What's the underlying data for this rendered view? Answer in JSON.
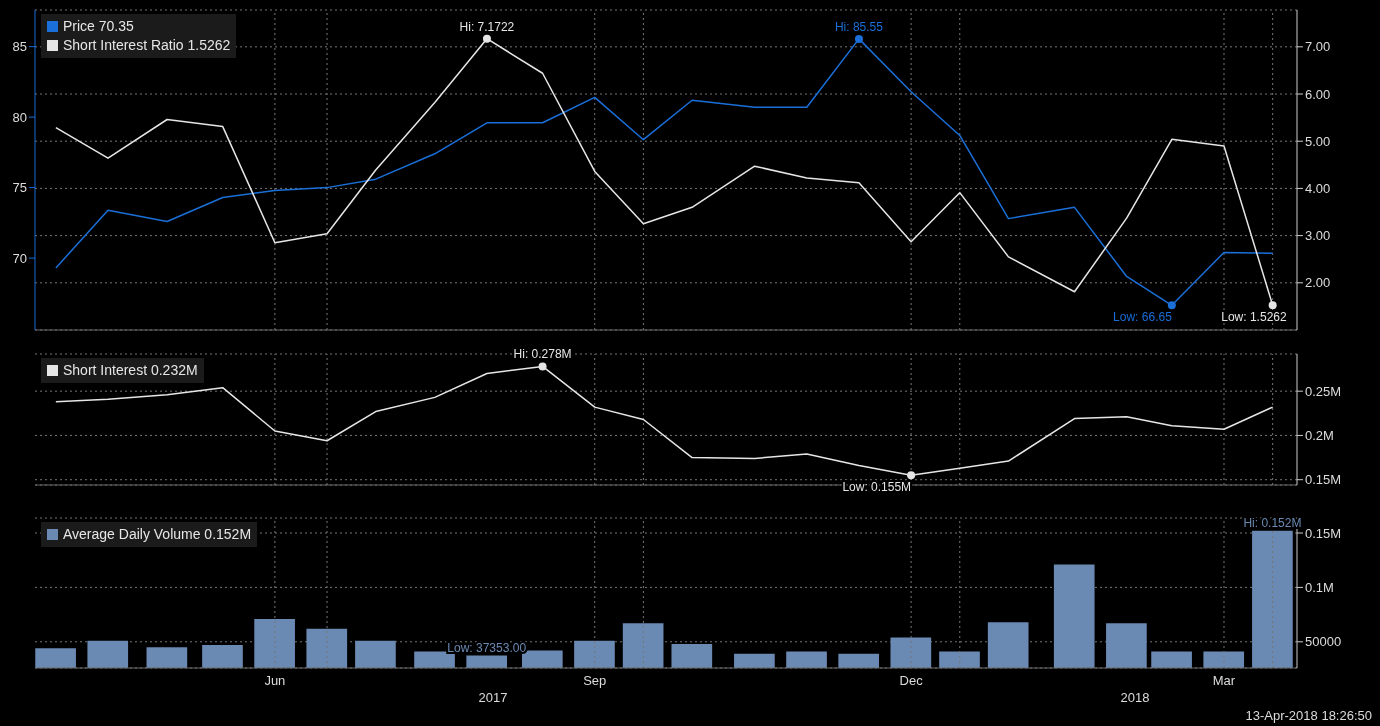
{
  "chart_data": [
    {
      "type": "line",
      "x": [
        "2017-04-13",
        "2017-04-28",
        "2017-05-15",
        "2017-05-31",
        "2017-06-15",
        "2017-06-30",
        "2017-07-14",
        "2017-07-31",
        "2017-08-15",
        "2017-08-31",
        "2017-09-15",
        "2017-09-29",
        "2017-10-13",
        "2017-10-31",
        "2017-11-15",
        "2017-11-30",
        "2017-12-15",
        "2017-12-29",
        "2018-01-12",
        "2018-01-31",
        "2018-02-15",
        "2018-02-28",
        "2018-03-15",
        "2018-03-29"
      ],
      "xlim": [
        "2017-04-07",
        "2018-04-05"
      ],
      "xticks": [
        {
          "value": "2017-06-15",
          "label": null
        },
        {
          "value": "2017-06-30",
          "label": null
        },
        {
          "value": "2017-09-15",
          "label": null
        },
        {
          "value": "2017-09-29",
          "label": null
        },
        {
          "value": "2017-12-15",
          "label": null
        },
        {
          "value": "2017-12-29",
          "label": null
        },
        {
          "value": "2018-03-15",
          "label": null
        },
        {
          "value": "2018-03-29",
          "label": null
        }
      ],
      "tick_labels": "y",
      "grid": true,
      "legend": "top left",
      "ylim": [
        64.9,
        87.6
      ],
      "yticks": [
        70,
        75,
        80,
        85
      ],
      "y2lim": [
        1.0,
        7.78
      ],
      "y2ticks": [
        {
          "value": 2,
          "label": "2.00"
        },
        {
          "value": 3,
          "label": "3.00"
        },
        {
          "value": 4,
          "label": "4.00"
        },
        {
          "value": 5,
          "label": "5.00"
        },
        {
          "value": 6,
          "label": "6.00"
        },
        {
          "value": 7,
          "label": "7.00"
        }
      ],
      "series": [
        {
          "name": "Price 70.35",
          "color": "#1a6fd8",
          "values": [
            69.3,
            73.4,
            72.6,
            74.3,
            74.8,
            75.0,
            75.6,
            77.4,
            79.6,
            79.6,
            81.4,
            78.4,
            81.2,
            80.7,
            80.7,
            85.55,
            81.8,
            78.7,
            72.8,
            73.6,
            68.7,
            66.65,
            70.4,
            70.35
          ],
          "value_labels": [
            null,
            null,
            null,
            null,
            null,
            null,
            null,
            null,
            null,
            null,
            null,
            null,
            null,
            null,
            null,
            "Hi: 85.55",
            null,
            null,
            null,
            null,
            null,
            "Low: 66.65",
            null,
            null
          ]
        },
        {
          "name": "Short Interest Ratio 1.5262",
          "color": "#e6e6e6",
          "axis": "y2",
          "values": [
            5.29,
            4.64,
            5.46,
            5.31,
            2.85,
            3.04,
            4.39,
            5.82,
            7.1722,
            6.44,
            4.36,
            3.25,
            3.6,
            4.47,
            4.22,
            4.12,
            2.87,
            3.91,
            2.55,
            1.81,
            3.37,
            5.04,
            4.9,
            1.5262
          ],
          "value_labels": [
            null,
            null,
            null,
            null,
            null,
            null,
            null,
            null,
            "Hi: 7.1722",
            null,
            null,
            null,
            null,
            null,
            null,
            null,
            null,
            null,
            null,
            null,
            null,
            null,
            null,
            "Low: 1.5262"
          ]
        }
      ]
    },
    {
      "type": "line",
      "x": [
        "2017-04-13",
        "2017-04-28",
        "2017-05-15",
        "2017-05-31",
        "2017-06-15",
        "2017-06-30",
        "2017-07-14",
        "2017-07-31",
        "2017-08-15",
        "2017-08-31",
        "2017-09-15",
        "2017-09-29",
        "2017-10-13",
        "2017-10-31",
        "2017-11-15",
        "2017-11-30",
        "2017-12-15",
        "2017-12-29",
        "2018-01-12",
        "2018-01-31",
        "2018-02-15",
        "2018-02-28",
        "2018-03-15",
        "2018-03-29"
      ],
      "xlim": [
        "2017-04-07",
        "2018-04-05"
      ],
      "xticks": [
        {
          "value": "2017-06-15",
          "label": null
        },
        {
          "value": "2017-06-30",
          "label": null
        },
        {
          "value": "2017-09-15",
          "label": null
        },
        {
          "value": "2017-09-29",
          "label": null
        },
        {
          "value": "2017-12-15",
          "label": null
        },
        {
          "value": "2017-12-29",
          "label": null
        },
        {
          "value": "2018-03-15",
          "label": null
        },
        {
          "value": "2018-03-29",
          "label": null
        }
      ],
      "tick_labels": "y",
      "grid": true,
      "legend": "top left",
      "ylim": [
        0.144,
        0.292
      ],
      "yticks": [
        {
          "value": 0.15,
          "label": "0.15M"
        },
        {
          "value": 0.2,
          "label": "0.2M"
        },
        {
          "value": 0.25,
          "label": "0.25M"
        }
      ],
      "series": [
        {
          "name": "Short Interest 0.232M",
          "color": "#e6e6e6",
          "values": [
            0.238,
            0.241,
            0.246,
            0.254,
            0.205,
            0.194,
            0.227,
            0.243,
            0.27,
            0.278,
            0.232,
            0.218,
            0.175,
            0.174,
            0.179,
            0.166,
            0.155,
            0.163,
            0.171,
            0.219,
            0.221,
            0.211,
            0.207,
            0.232
          ],
          "value_labels": [
            null,
            null,
            null,
            null,
            null,
            null,
            null,
            null,
            null,
            "Hi: 0.278M",
            null,
            null,
            null,
            null,
            null,
            null,
            "Low: 0.155M",
            null,
            null,
            null,
            null,
            null,
            null,
            null
          ]
        }
      ]
    },
    {
      "type": "bar",
      "x": [
        "2017-04-13",
        "2017-04-28",
        "2017-05-15",
        "2017-05-31",
        "2017-06-15",
        "2017-06-30",
        "2017-07-14",
        "2017-07-31",
        "2017-08-15",
        "2017-08-31",
        "2017-09-15",
        "2017-09-29",
        "2017-10-13",
        "2017-10-31",
        "2017-11-15",
        "2017-11-30",
        "2017-12-15",
        "2017-12-29",
        "2018-01-12",
        "2018-01-31",
        "2018-02-15",
        "2018-02-28",
        "2018-03-15",
        "2018-03-29"
      ],
      "xlim": [
        "2017-04-07",
        "2018-04-05"
      ],
      "xticks": [
        {
          "value": "2017-06-15",
          "label": "Jun"
        },
        {
          "value": "2017-06-30",
          "label": null
        },
        {
          "value": "2017-09-15",
          "label": "Sep"
        },
        {
          "value": "2017-09-29",
          "label": null
        },
        {
          "value": "2017-12-15",
          "label": "Dec"
        },
        {
          "value": "2017-12-29",
          "label": null
        },
        {
          "value": "2018-03-15",
          "label": "Mar"
        },
        {
          "value": "2018-03-29",
          "label": null
        }
      ],
      "grid": true,
      "legend": "top left",
      "ylim": [
        25900,
        163800
      ],
      "yticks": [
        {
          "value": 50000,
          "label": "50000"
        },
        {
          "value": 100000,
          "label": "0.1M"
        },
        {
          "value": 150000,
          "label": "0.15M"
        }
      ],
      "series": [
        {
          "name": "Average Daily Volume 0.152M",
          "color": "#6a89b3",
          "values": [
            44000,
            51000,
            45000,
            47000,
            71000,
            62000,
            51000,
            41000,
            37353,
            42000,
            51000,
            67000,
            48000,
            39000,
            41000,
            39000,
            54000,
            41000,
            68000,
            121000,
            67000,
            41000,
            41000,
            152000
          ],
          "value_labels": [
            null,
            null,
            null,
            null,
            null,
            null,
            null,
            null,
            "Low: 37353.00",
            null,
            null,
            null,
            null,
            null,
            null,
            null,
            null,
            null,
            null,
            null,
            null,
            null,
            null,
            "Hi: 0.152M"
          ]
        }
      ],
      "annotations": [
        "2017",
        "2018",
        "13-Apr-2018 18:26:50"
      ]
    }
  ]
}
